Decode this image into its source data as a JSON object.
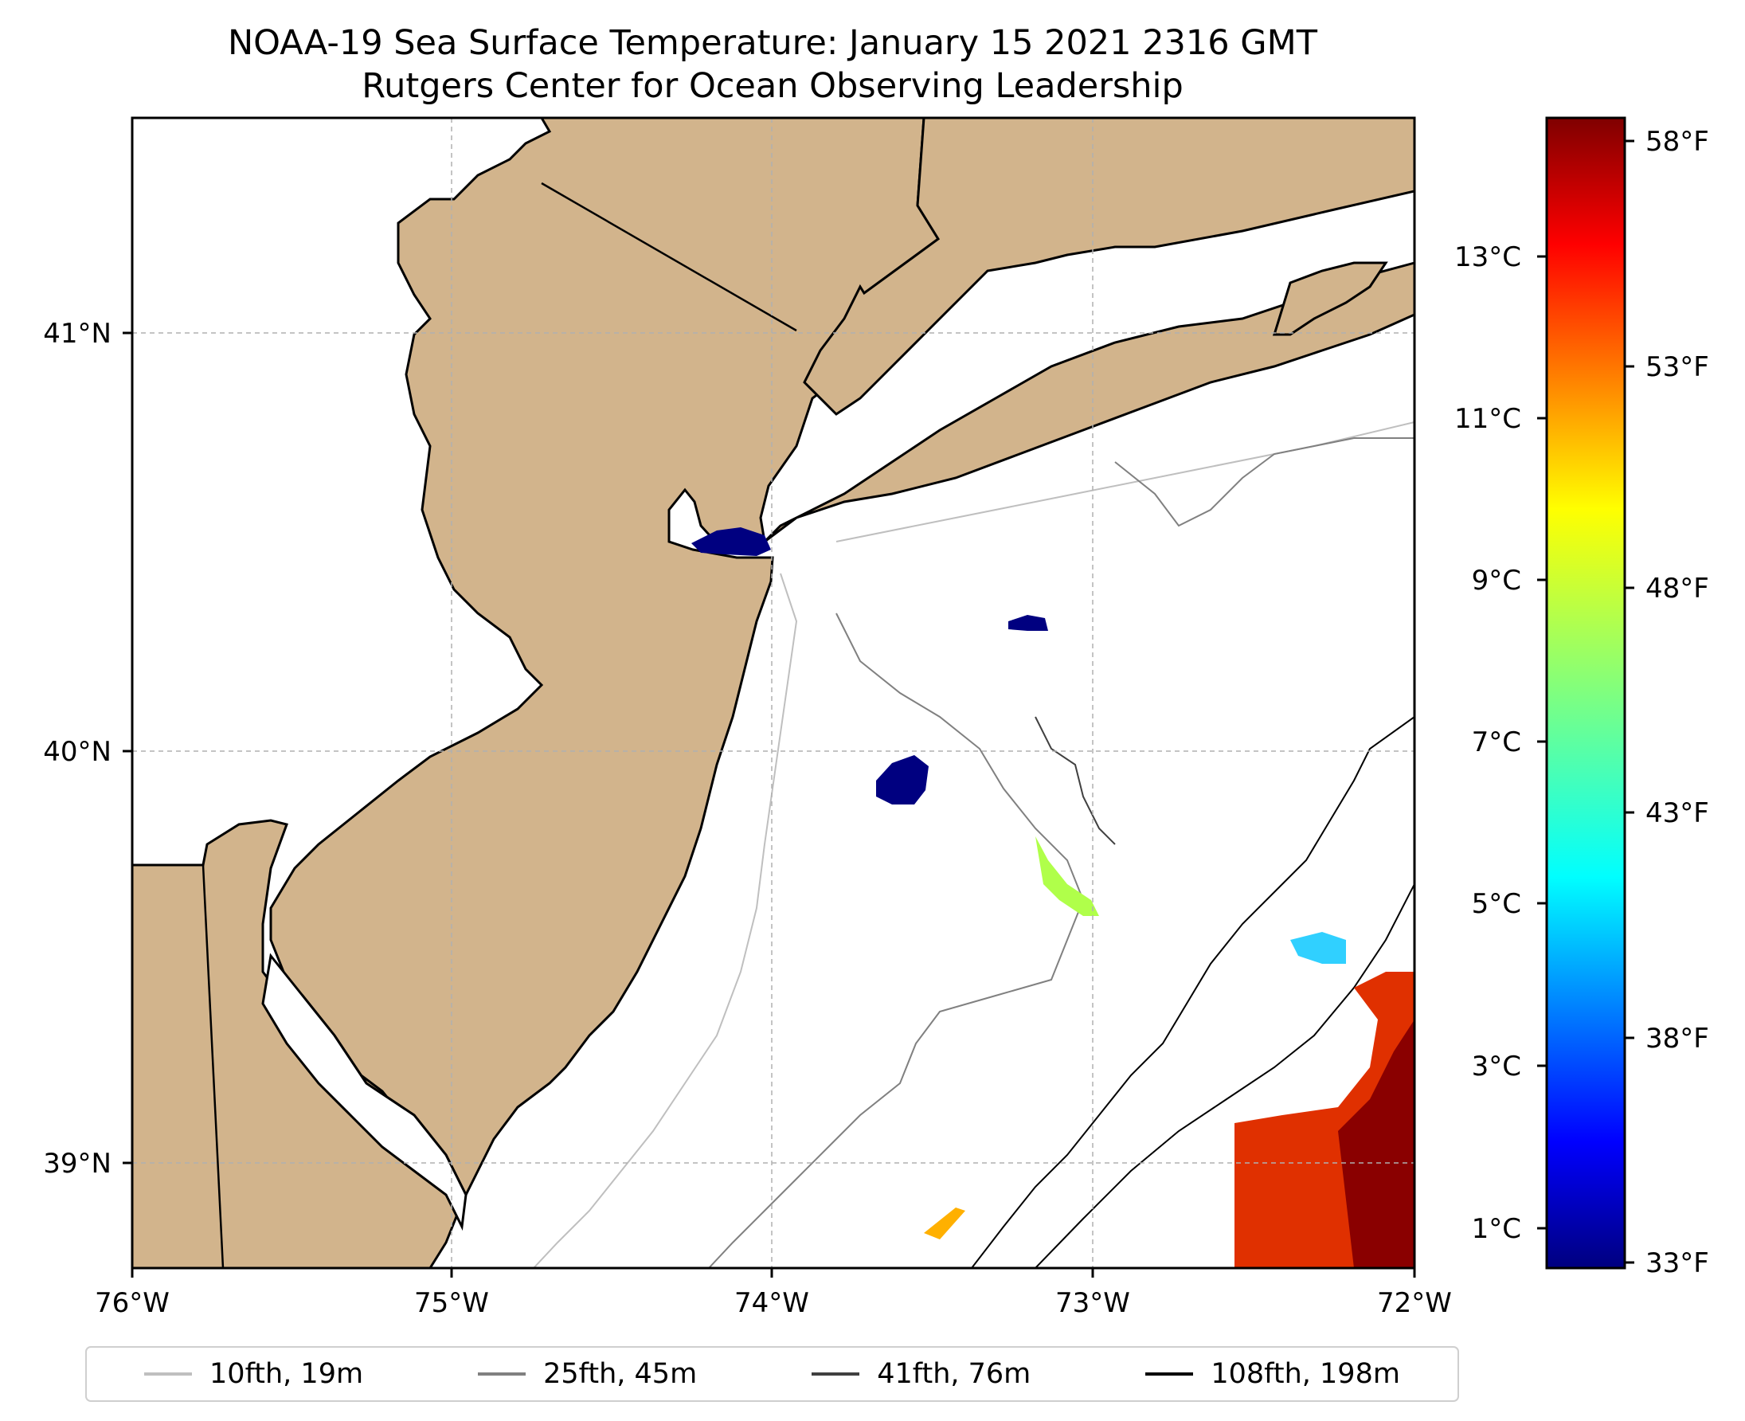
{
  "title": {
    "line1": "NOAA-19 Sea Surface Temperature: January 15 2021 2316 GMT",
    "line2": "Rutgers Center for Ocean Observing Leadership"
  },
  "map": {
    "lon_range": [
      -76,
      -72
    ],
    "lat_range": [
      38.75,
      41.52
    ],
    "lon_ticks": [
      "76°W",
      "75°W",
      "74°W",
      "73°W",
      "72°W"
    ],
    "lat_ticks": [
      "39°N",
      "40°N",
      "41°N"
    ],
    "land_color": "#d2b48c",
    "water_color": "#ffffff",
    "gridlines": true,
    "sst_patches": [
      {
        "name": "raritan-bay",
        "color": "#000080"
      },
      {
        "name": "shelf-patch-small",
        "color": "#000080"
      },
      {
        "name": "shelf-patch-large",
        "color": "#000080"
      },
      {
        "name": "canyon-strip",
        "color": "#b0ff4a"
      },
      {
        "name": "shelf-break-patch",
        "color": "#30d0ff"
      },
      {
        "name": "gulf-stream-warm-core",
        "color": "#8a0000"
      },
      {
        "name": "gulf-stream-edge",
        "color": "#e03000"
      }
    ]
  },
  "colorbar": {
    "colormap": "jet",
    "celsius_ticks": [
      "1°C",
      "3°C",
      "5°C",
      "7°C",
      "9°C",
      "11°C",
      "13°C"
    ],
    "fahrenheit_ticks": [
      "33°F",
      "38°F",
      "43°F",
      "48°F",
      "53°F",
      "58°F"
    ]
  },
  "legend": {
    "items": [
      {
        "label": "10fth, 19m",
        "color": "#bfbfbf"
      },
      {
        "label": "25fth, 45m",
        "color": "#808080"
      },
      {
        "label": "41fth, 76m",
        "color": "#404040"
      },
      {
        "label": "108fth, 198m",
        "color": "#000000"
      }
    ]
  }
}
